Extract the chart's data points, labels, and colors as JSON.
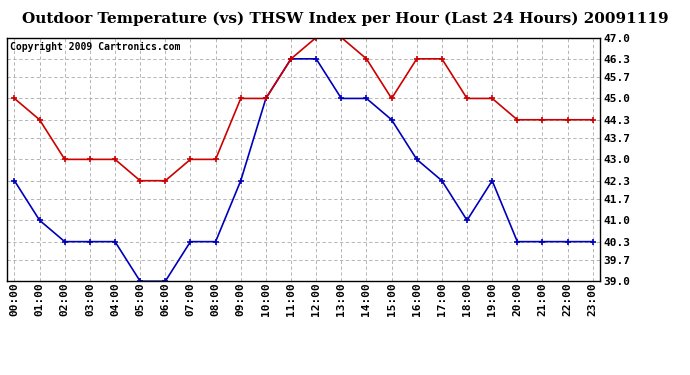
{
  "title": "Outdoor Temperature (vs) THSW Index per Hour (Last 24 Hours) 20091119",
  "copyright": "Copyright 2009 Cartronics.com",
  "hours": [
    "00:00",
    "01:00",
    "02:00",
    "03:00",
    "04:00",
    "05:00",
    "06:00",
    "07:00",
    "08:00",
    "09:00",
    "10:00",
    "11:00",
    "12:00",
    "13:00",
    "14:00",
    "15:00",
    "16:00",
    "17:00",
    "18:00",
    "19:00",
    "20:00",
    "21:00",
    "22:00",
    "23:00"
  ],
  "blue_values": [
    42.3,
    41.0,
    40.3,
    40.3,
    40.3,
    39.0,
    39.0,
    40.3,
    40.3,
    42.3,
    45.0,
    46.3,
    46.3,
    45.0,
    45.0,
    44.3,
    43.0,
    42.3,
    41.0,
    42.3,
    40.3,
    40.3,
    40.3,
    40.3
  ],
  "red_values": [
    45.0,
    44.3,
    43.0,
    43.0,
    43.0,
    42.3,
    42.3,
    43.0,
    43.0,
    45.0,
    45.0,
    46.3,
    47.0,
    47.0,
    46.3,
    45.0,
    46.3,
    46.3,
    45.0,
    45.0,
    44.3,
    44.3,
    44.3,
    44.3
  ],
  "blue_color": "#0000bb",
  "red_color": "#cc0000",
  "bg_color": "#ffffff",
  "plot_bg": "#ffffff",
  "grid_color": "#aaaaaa",
  "ylim_min": 39.0,
  "ylim_max": 47.0,
  "yticks": [
    39.0,
    39.7,
    40.3,
    41.0,
    41.7,
    42.3,
    43.0,
    43.7,
    44.3,
    45.0,
    45.7,
    46.3,
    47.0
  ],
  "title_fontsize": 11,
  "tick_fontsize": 8,
  "copyright_fontsize": 7
}
